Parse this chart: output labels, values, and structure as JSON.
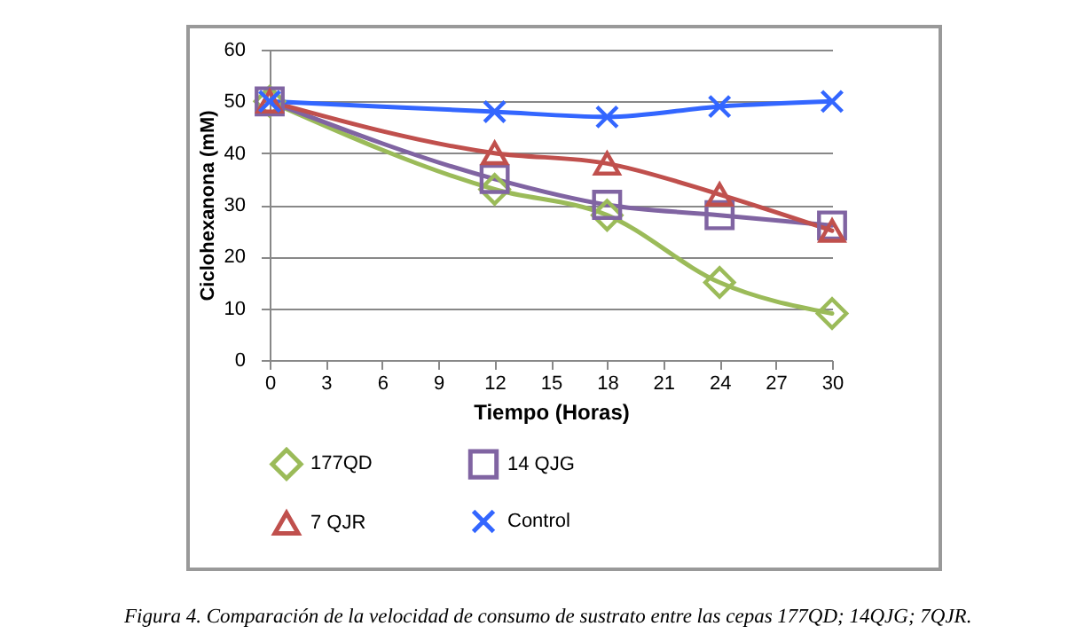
{
  "chart_data": {
    "type": "line",
    "xlabel": "Tiempo (Horas)",
    "ylabel": "Ciclohexanona (mM)",
    "x": [
      0,
      12,
      18,
      24,
      30
    ],
    "series": [
      {
        "name": "177QD",
        "color": "#9bbb59",
        "marker": "diamond",
        "values": [
          50,
          33,
          28,
          15,
          9
        ]
      },
      {
        "name": "14 QJG",
        "color": "#8064a2",
        "marker": "square",
        "values": [
          50,
          35,
          30,
          28,
          26
        ]
      },
      {
        "name": "7 QJR",
        "color": "#c0504d",
        "marker": "triangle",
        "values": [
          50,
          40,
          38,
          32,
          25
        ]
      },
      {
        "name": "Control",
        "color": "#3366ff",
        "marker": "cross",
        "values": [
          50,
          48,
          47,
          49,
          50
        ]
      }
    ],
    "xlim": [
      0,
      30
    ],
    "xticks": [
      0,
      3,
      6,
      9,
      12,
      15,
      18,
      21,
      24,
      27,
      30
    ],
    "ylim": [
      0,
      60
    ],
    "yticks": [
      0,
      10,
      20,
      30,
      40,
      50,
      60
    ],
    "grid": "y",
    "legend": "bottom",
    "annotations": [
      "Figura 4. Comparación de la velocidad de consumo de sustrato  entre las cepas  177QD; 14QJG; 7QJR."
    ]
  }
}
